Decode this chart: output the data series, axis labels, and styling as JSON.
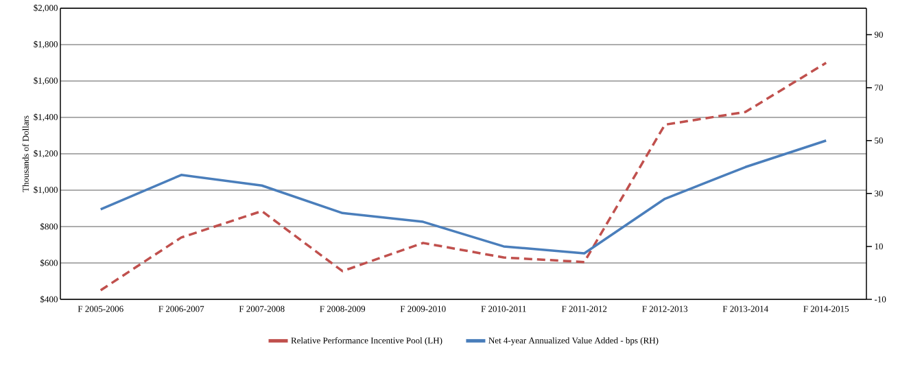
{
  "chart_data": {
    "type": "line",
    "ylabel": "Thousands of Dollars",
    "categories": [
      "F 2005-2006",
      "F 2006-2007",
      "F 2007-2008",
      "F 2008-2009",
      "F 2009-2010",
      "F 2010-2011",
      "F 2011-2012",
      "F 2012-2013",
      "F 2013-2014",
      "F 2014-2015"
    ],
    "series": [
      {
        "name": "Relative Performance Incentive Pool (LH)",
        "color": "#c0504d",
        "line_style": "dashed",
        "values": [
          450,
          740,
          885,
          555,
          710,
          630,
          605,
          1360,
          1430,
          1700
        ]
      },
      {
        "name": "Net 4-year Annualized Value Added - bps (RH)",
        "color": "#4a7ebb",
        "line_style": "solid",
        "axis": "y2",
        "values": [
          24,
          37,
          33,
          22.6,
          19.3,
          10,
          7.4,
          28,
          40,
          50
        ]
      }
    ],
    "ylim": [
      400,
      2000
    ],
    "yticks": [
      {
        "value": 400,
        "label": "$400"
      },
      {
        "value": 600,
        "label": "$600"
      },
      {
        "value": 800,
        "label": "$800"
      },
      {
        "value": 1000,
        "label": "$1,000"
      },
      {
        "value": 1200,
        "label": "$1,200"
      },
      {
        "value": 1400,
        "label": "$1,400"
      },
      {
        "value": 1600,
        "label": "$1,600"
      },
      {
        "value": 1800,
        "label": "$1,800"
      },
      {
        "value": 2000,
        "label": "$2,000"
      }
    ],
    "y2lim": [
      -10,
      100
    ],
    "y2ticks": [
      -10,
      10,
      30,
      50,
      70,
      90
    ],
    "grid": "y",
    "legend": "bottom",
    "marker": "none"
  }
}
